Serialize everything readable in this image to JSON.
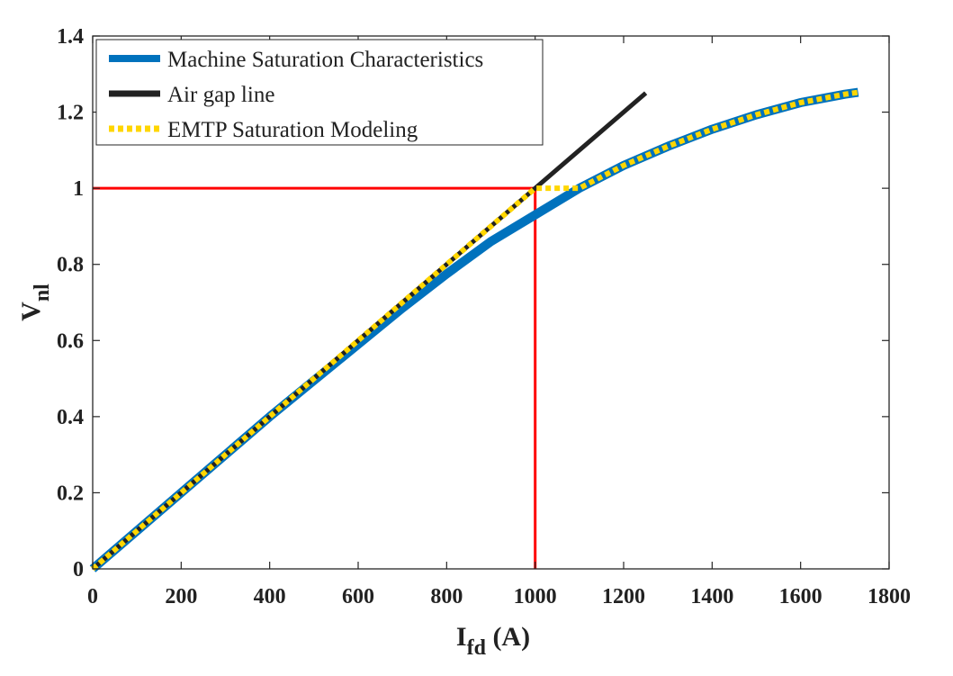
{
  "chart_data": {
    "type": "line",
    "title": "",
    "xlabel": {
      "main": "I",
      "sub": "fd",
      "suffix": " (A)"
    },
    "ylabel": {
      "main": "V",
      "sub": "nl"
    },
    "xlim": [
      0,
      1800
    ],
    "ylim": [
      0,
      1.4
    ],
    "xticks": [
      0,
      200,
      400,
      600,
      800,
      1000,
      1200,
      1400,
      1600,
      1800
    ],
    "yticks": [
      0,
      0.2,
      0.4,
      0.6,
      0.8,
      1,
      1.2,
      1.4
    ],
    "xtick_labels": [
      "0",
      "200",
      "400",
      "600",
      "800",
      "1000",
      "1200",
      "1400",
      "1600",
      "1800"
    ],
    "ytick_labels": [
      "0",
      "0.2",
      "0.4",
      "0.6",
      "0.8",
      "1",
      "1.2",
      "1.4"
    ],
    "grid": false,
    "legend_position": "top-left",
    "series": [
      {
        "name": "Machine Saturation Characteristics",
        "color": "#0072BD",
        "style": "solid",
        "x": [
          0,
          200,
          400,
          600,
          700,
          800,
          900,
          1000,
          1100,
          1200,
          1300,
          1400,
          1500,
          1600,
          1700,
          1730
        ],
        "y": [
          0,
          0.2,
          0.4,
          0.59,
          0.685,
          0.775,
          0.86,
          0.93,
          1.0,
          1.06,
          1.11,
          1.155,
          1.193,
          1.225,
          1.247,
          1.252
        ]
      },
      {
        "name": "Air gap line",
        "color": "#222222",
        "style": "solid",
        "x": [
          0,
          1250
        ],
        "y": [
          0,
          1.25
        ]
      },
      {
        "name": "EMTP Saturation Modeling",
        "color": "#FFD600",
        "style": "dotted",
        "x": [
          0,
          1000,
          1100,
          1200,
          1300,
          1400,
          1500,
          1600,
          1700,
          1730
        ],
        "y": [
          0,
          1.0,
          1.0,
          1.06,
          1.11,
          1.155,
          1.193,
          1.225,
          1.247,
          1.252
        ]
      }
    ],
    "reference_lines": {
      "color": "#FF0000",
      "horizontal": {
        "x": [
          0,
          1000
        ],
        "y": [
          1,
          1
        ]
      },
      "vertical": {
        "x": [
          1000,
          1000
        ],
        "y": [
          0,
          1
        ]
      }
    }
  }
}
